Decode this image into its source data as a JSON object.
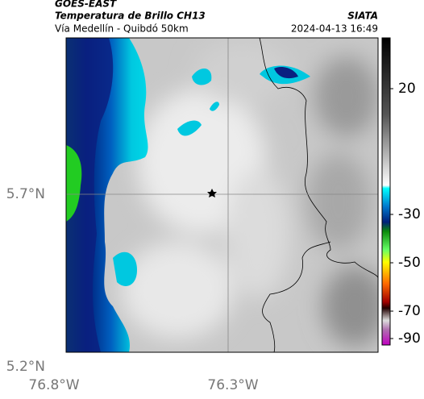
{
  "header": {
    "title": "GOES-EAST",
    "subtitle": "Temperatura de Brillo CH13",
    "route": "Vía Medellín - Quibdó 50km",
    "source": "SIATA",
    "datetime": "2024-04-13 16:49"
  },
  "axes": {
    "lat_labels": [
      "5.7°N",
      "5.2°N"
    ],
    "lon_labels": [
      "76.8°W",
      "76.3°W"
    ]
  },
  "colorbar": {
    "ticks": [
      "20",
      "-30",
      "-50",
      "-70",
      "-90"
    ]
  }
}
